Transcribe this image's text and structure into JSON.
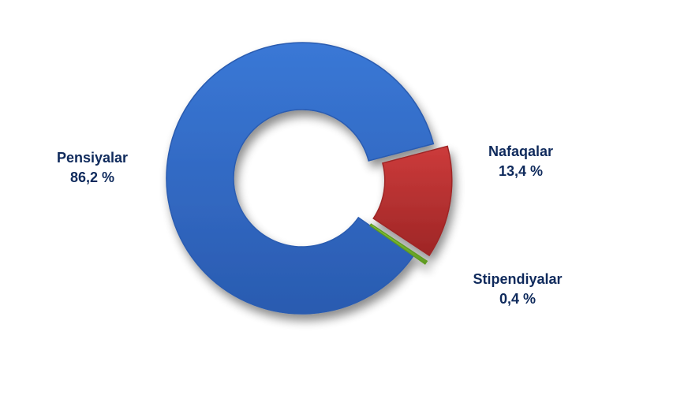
{
  "chart_data": {
    "type": "pie",
    "style": "donut, exploded slices, 3D shading",
    "slices": [
      {
        "name": "Pensiyalar",
        "value": 86.2,
        "value_label": "86,2 %",
        "color": "#3a78d6",
        "color_dark": "#2a5bb0"
      },
      {
        "name": "Nafaqalar",
        "value": 13.4,
        "value_label": "13,4 %",
        "color": "#cc3b3b",
        "color_dark": "#9e2626"
      },
      {
        "name": "Stipendiyalar",
        "value": 0.4,
        "value_label": "0,4 %",
        "color": "#8ccf3a",
        "color_dark": "#5f9a22"
      }
    ],
    "label_color": "#0f2a5c",
    "legend": "none (labels beside slices)"
  }
}
